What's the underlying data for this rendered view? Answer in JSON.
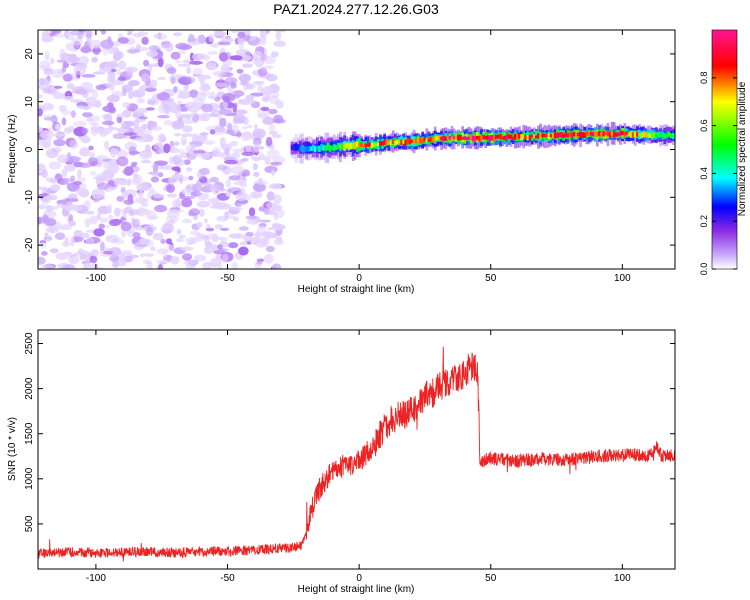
{
  "title": "PAZ1.2024.277.12.26.G03",
  "chart_data": [
    {
      "type": "heatmap",
      "xlabel": "Height of straight line (km)",
      "ylabel": "Frequency (Hz)",
      "xlim": [
        -122,
        120
      ],
      "ylim": [
        -25,
        25
      ],
      "xticks": [
        -100,
        -50,
        0,
        50,
        100
      ],
      "xtick_labels": [
        "-100",
        "-50",
        "0",
        "50",
        "100"
      ],
      "yticks": [
        -20,
        -10,
        0,
        10,
        20
      ],
      "ytick_labels": [
        "-20",
        "-10",
        "0",
        "10",
        "20"
      ],
      "colorbar": {
        "label": "Normalized spectral amplitude",
        "range": [
          0,
          1
        ],
        "ticks": [
          0.0,
          0.2,
          0.4,
          0.6,
          0.8
        ],
        "tick_labels": [
          "0.0",
          "0.2",
          "0.4",
          "0.6",
          "0.8"
        ],
        "colormap": [
          "#ffffff",
          "#c8a8ff",
          "#8a2be2",
          "#0000ff",
          "#00ffff",
          "#00ff00",
          "#ffff00",
          "#ff0000",
          "#ff1493"
        ]
      },
      "noise_region": {
        "x": [
          -122,
          -30
        ],
        "y": [
          -25,
          25
        ],
        "amplitude": [
          0.0,
          0.2
        ]
      },
      "signal_ridge": {
        "x": [
          -26,
          -22,
          -18,
          -10,
          -5,
          0,
          5,
          10,
          15,
          20,
          30,
          40,
          50,
          60,
          70,
          80,
          90,
          100,
          110,
          120
        ],
        "freq": [
          0.3,
          0.3,
          0.2,
          0.5,
          0.8,
          0.9,
          1.0,
          1.4,
          1.6,
          1.6,
          2.3,
          2.4,
          2.5,
          2.6,
          2.8,
          3.1,
          3.2,
          3.3,
          3.0,
          3.0
        ],
        "amplitude": [
          0.3,
          0.45,
          0.5,
          0.6,
          0.75,
          0.85,
          0.8,
          0.85,
          0.8,
          0.85,
          0.9,
          0.95,
          0.95,
          0.9,
          0.85,
          0.9,
          0.95,
          0.9,
          0.7,
          0.6
        ]
      },
      "grid": false
    },
    {
      "type": "line",
      "xlabel": "Height of straight line (km)",
      "ylabel": "SNR (10 * v/v)",
      "xlim": [
        -122,
        120
      ],
      "ylim": [
        0,
        2650
      ],
      "xticks": [
        -100,
        -50,
        0,
        50,
        100
      ],
      "xtick_labels": [
        "-100",
        "-50",
        "0",
        "50",
        "100"
      ],
      "yticks": [
        500,
        1000,
        1500,
        2000,
        2500
      ],
      "ytick_labels": [
        "500",
        "1000",
        "1500",
        "2000",
        "2500"
      ],
      "color": "#ee2222",
      "series": [
        {
          "x": [
            -122,
            -110,
            -100,
            -90,
            -80,
            -70,
            -60,
            -50,
            -40,
            -30,
            -25,
            -22,
            -20,
            -18,
            -15,
            -12,
            -10,
            -5,
            0,
            5,
            10,
            15,
            20,
            25,
            30,
            35,
            40,
            42,
            45,
            46,
            47,
            50,
            60,
            70,
            80,
            90,
            100,
            105,
            110,
            113,
            115,
            120
          ],
          "y": [
            170,
            190,
            180,
            185,
            190,
            180,
            190,
            200,
            210,
            230,
            240,
            260,
            400,
            650,
            900,
            1000,
            1100,
            1150,
            1200,
            1350,
            1600,
            1700,
            1750,
            1900,
            2000,
            2100,
            2150,
            2250,
            2200,
            1150,
            1200,
            1230,
            1200,
            1220,
            1210,
            1250,
            1260,
            1270,
            1250,
            1350,
            1250,
            1270
          ]
        }
      ],
      "grid": false
    }
  ]
}
